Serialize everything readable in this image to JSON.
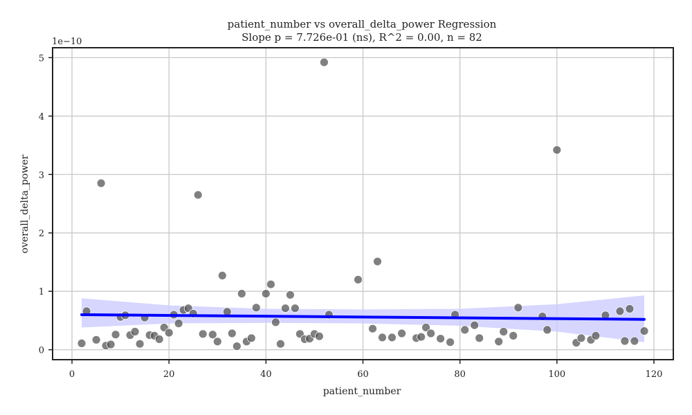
{
  "chart_data": {
    "type": "scatter",
    "title": "patient_number vs overall_delta_power Regression",
    "subtitle": "Slope p = 7.726e-01 (ns), R^2 = 0.00, n = 82",
    "xlabel": "patient_number",
    "ylabel": "overall_delta_power",
    "y_scale_label": "1e−10",
    "xlim": [
      -4,
      124
    ],
    "ylim": [
      -0.17,
      5.17
    ],
    "x_ticks": [
      0,
      20,
      40,
      60,
      80,
      100,
      120
    ],
    "y_ticks": [
      0,
      1,
      2,
      3,
      4,
      5
    ],
    "grid": true,
    "point_color": "#555555",
    "regression_color": "#0000ff",
    "ci_color": "#ccccff",
    "points": [
      [
        2,
        0.11
      ],
      [
        3,
        0.66
      ],
      [
        5,
        0.17
      ],
      [
        6,
        2.85
      ],
      [
        7,
        0.07
      ],
      [
        8,
        0.09
      ],
      [
        9,
        0.26
      ],
      [
        10,
        0.56
      ],
      [
        11,
        0.59
      ],
      [
        12,
        0.25
      ],
      [
        13,
        0.31
      ],
      [
        14,
        0.1
      ],
      [
        15,
        0.55
      ],
      [
        16,
        0.25
      ],
      [
        17,
        0.24
      ],
      [
        18,
        0.18
      ],
      [
        19,
        0.38
      ],
      [
        20,
        0.29
      ],
      [
        21,
        0.6
      ],
      [
        22,
        0.45
      ],
      [
        23,
        0.68
      ],
      [
        24,
        0.71
      ],
      [
        25,
        0.62
      ],
      [
        26,
        2.65
      ],
      [
        27,
        0.27
      ],
      [
        29,
        0.26
      ],
      [
        30,
        0.14
      ],
      [
        31,
        1.27
      ],
      [
        32,
        0.65
      ],
      [
        33,
        0.28
      ],
      [
        34,
        0.06
      ],
      [
        35,
        0.96
      ],
      [
        36,
        0.14
      ],
      [
        37,
        0.2
      ],
      [
        38,
        0.72
      ],
      [
        40,
        0.96
      ],
      [
        41,
        1.12
      ],
      [
        42,
        0.47
      ],
      [
        43,
        0.1
      ],
      [
        44,
        0.71
      ],
      [
        45,
        0.94
      ],
      [
        46,
        0.71
      ],
      [
        47,
        0.27
      ],
      [
        48,
        0.18
      ],
      [
        49,
        0.19
      ],
      [
        50,
        0.27
      ],
      [
        51,
        0.23
      ],
      [
        52,
        4.92
      ],
      [
        53,
        0.6
      ],
      [
        59,
        1.2
      ],
      [
        62,
        0.36
      ],
      [
        63,
        1.51
      ],
      [
        64,
        0.21
      ],
      [
        66,
        0.21
      ],
      [
        68,
        0.28
      ],
      [
        71,
        0.2
      ],
      [
        72,
        0.22
      ],
      [
        73,
        0.38
      ],
      [
        74,
        0.28
      ],
      [
        76,
        0.19
      ],
      [
        78,
        0.13
      ],
      [
        79,
        0.6
      ],
      [
        81,
        0.34
      ],
      [
        83,
        0.42
      ],
      [
        84,
        0.2
      ],
      [
        88,
        0.14
      ],
      [
        89,
        0.31
      ],
      [
        91,
        0.24
      ],
      [
        92,
        0.72
      ],
      [
        97,
        0.57
      ],
      [
        98,
        0.34
      ],
      [
        100,
        3.42
      ],
      [
        104,
        0.12
      ],
      [
        105,
        0.2
      ],
      [
        107,
        0.17
      ],
      [
        108,
        0.24
      ],
      [
        110,
        0.59
      ],
      [
        113,
        0.66
      ],
      [
        114,
        0.15
      ],
      [
        115,
        0.7
      ],
      [
        116,
        0.15
      ],
      [
        118,
        0.32
      ]
    ],
    "regression": {
      "x": [
        2,
        118
      ],
      "y": [
        0.6,
        0.52
      ]
    },
    "ci_band": {
      "x": [
        2,
        20,
        40,
        60,
        80,
        100,
        118
      ],
      "upper": [
        0.88,
        0.76,
        0.7,
        0.69,
        0.7,
        0.78,
        0.93
      ],
      "lower": [
        0.38,
        0.45,
        0.46,
        0.45,
        0.41,
        0.31,
        0.13
      ]
    }
  }
}
